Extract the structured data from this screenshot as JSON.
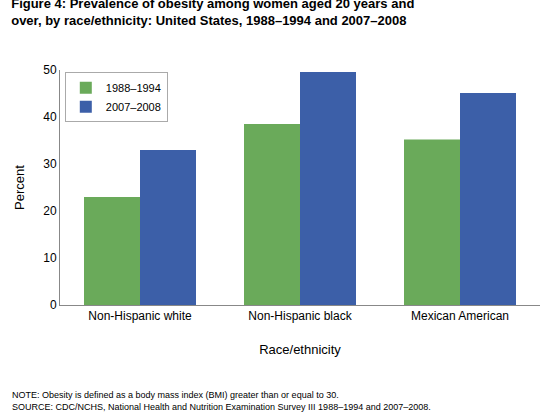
{
  "chart_data": {
    "type": "bar",
    "title": "Figure 4: Prevalence of obesity among women aged 20 years and\nover, by race/ethnicity: United States, 1988–1994 and 2007–2008",
    "xlabel": "Race/ethnicity",
    "ylabel": "Percent",
    "categories": [
      "Non-Hispanic white",
      "Non-Hispanic black",
      "Mexican American"
    ],
    "series": [
      {
        "name": "1988–1994",
        "color": "#6aaa5a",
        "values": [
          23,
          38.5,
          35.2
        ]
      },
      {
        "name": "2007–2008",
        "color": "#3c5fa8",
        "values": [
          33,
          49.6,
          45.1
        ]
      }
    ],
    "ylim": [
      0,
      50
    ],
    "yticks": [
      0,
      10,
      20,
      30,
      40,
      50
    ],
    "grid": false,
    "legend": "upper left",
    "annotations": [
      "NOTE: Obesity is defined as a body mass index (BMI) greater than or equal to 30.",
      "SOURCE: CDC/NCHS, National Health and Nutrition Examination Survey III 1988–1994 and 2007–2008."
    ]
  }
}
